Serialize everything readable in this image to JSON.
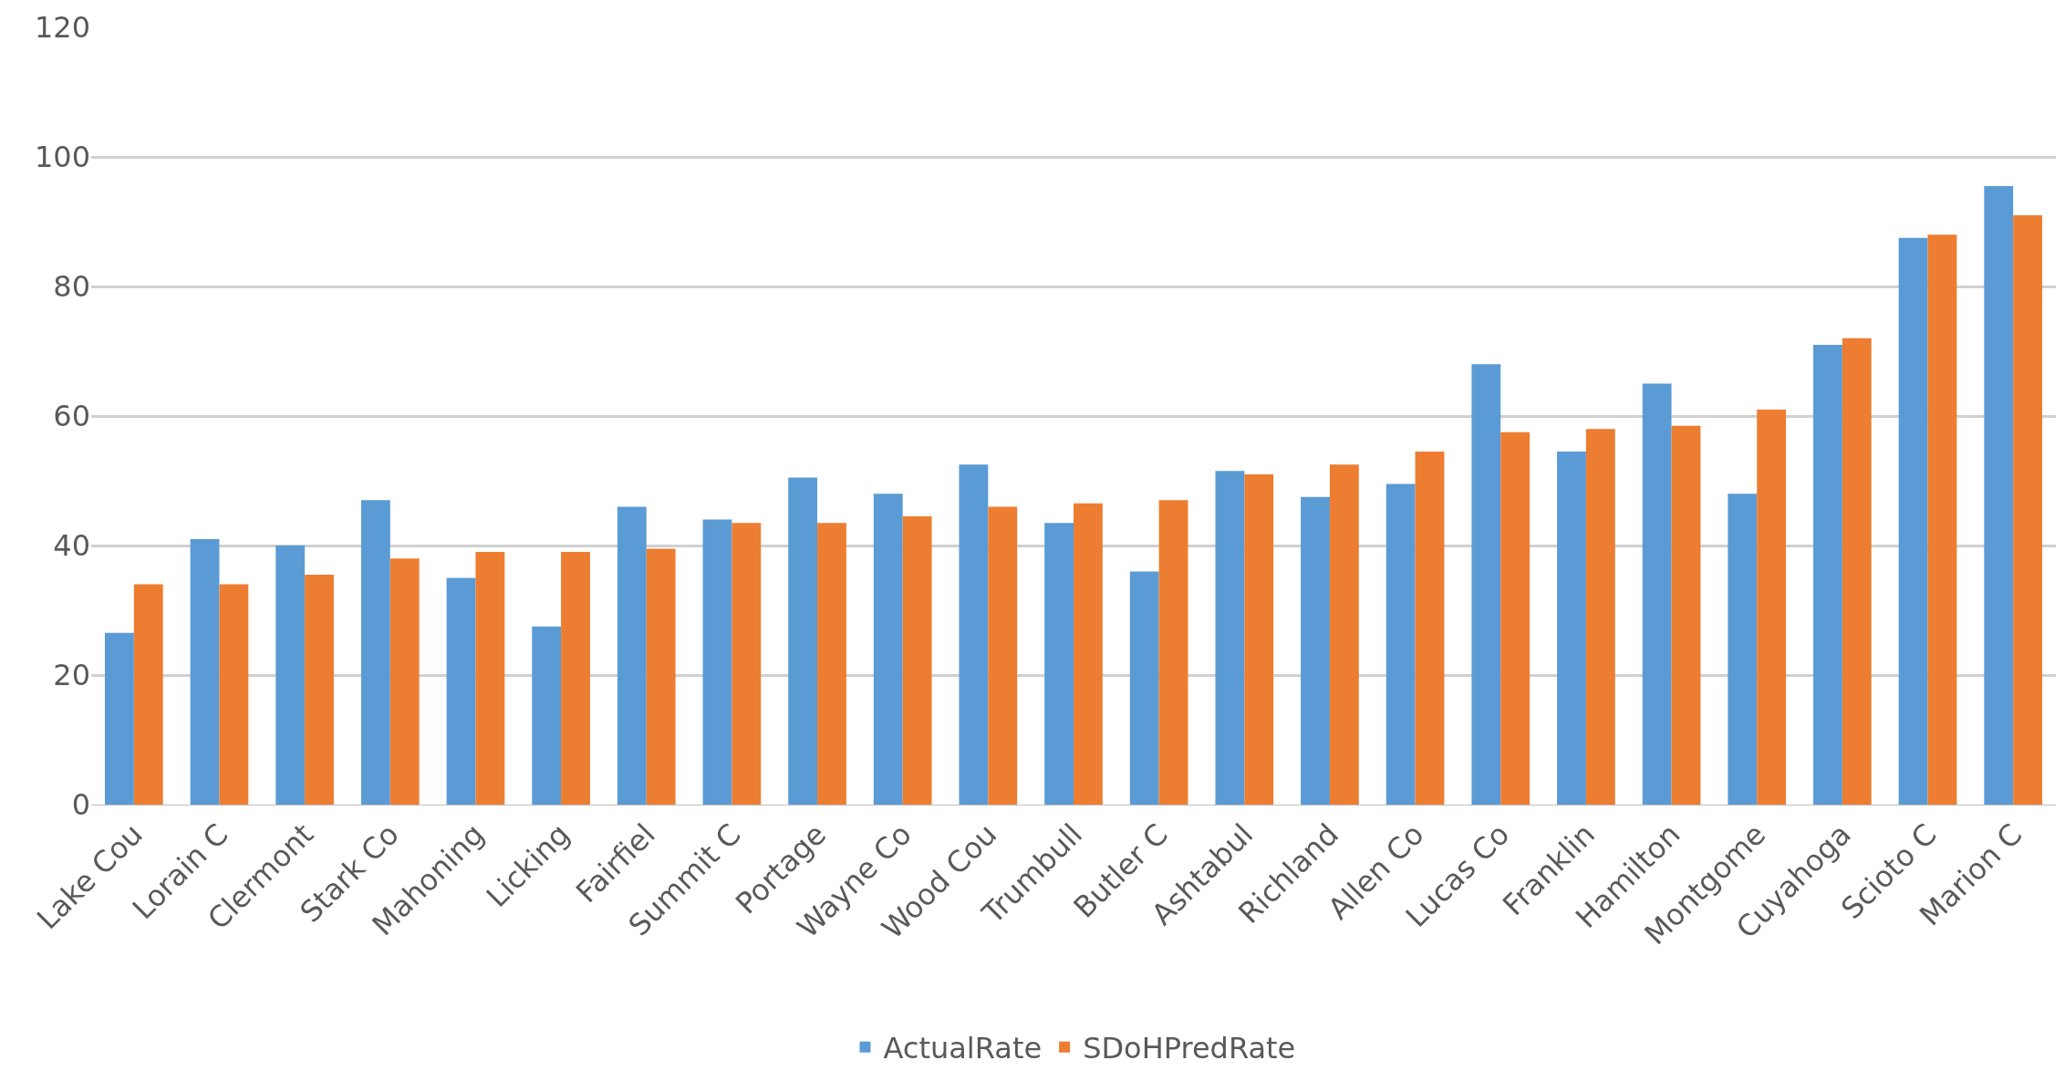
{
  "chart_data": {
    "type": "bar",
    "categories": [
      "Lake Cou",
      "Lorain C",
      "Clermont",
      "Stark Co",
      "Mahoning",
      "Licking",
      "Fairfiel",
      "Summit C",
      "Portage",
      "Wayne Co",
      "Wood Cou",
      "Trumbull",
      "Butler C",
      "Ashtabul",
      "Richland",
      "Allen Co",
      "Lucas Co",
      "Franklin",
      "Hamilton",
      "Montgome",
      "Cuyahoga",
      "Scioto C",
      "Marion C"
    ],
    "series": [
      {
        "name": "ActualRate",
        "color": "#5b9bd5",
        "values": [
          26.5,
          41,
          40,
          47,
          35,
          27.5,
          46,
          44,
          50.5,
          48,
          52.5,
          43.5,
          36,
          51.5,
          47.5,
          49.5,
          68,
          54.5,
          65,
          48,
          71,
          87.5,
          95.5
        ]
      },
      {
        "name": "SDoHPredRate",
        "color": "#ed7d31",
        "values": [
          34,
          34,
          35.5,
          38,
          39,
          39,
          39.5,
          43.5,
          43.5,
          44.5,
          46,
          46.5,
          47,
          51,
          52.5,
          54.5,
          57.5,
          58,
          58.5,
          61,
          72,
          88,
          91
        ]
      }
    ],
    "ylim": [
      0,
      120
    ],
    "yticks": [
      0,
      20,
      40,
      60,
      80,
      100,
      120
    ],
    "grid": "y",
    "legend": "bottom"
  }
}
